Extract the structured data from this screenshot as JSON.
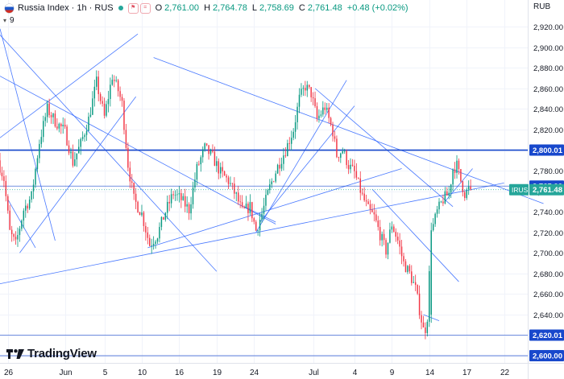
{
  "header": {
    "title": "Russia Index · 1h · RUS",
    "open_label": "O",
    "open": "2,761.00",
    "high_label": "H",
    "high": "2,764.78",
    "low_label": "L",
    "low": "2,758.69",
    "close_label": "C",
    "close": "2,761.48",
    "change": "+0.48 (+0.02%)",
    "currency": "RUB",
    "indicator_count": "9"
  },
  "brand": {
    "logo_text": "TradingView"
  },
  "colors": {
    "up": "#089981",
    "down": "#f23645",
    "trendline": "#2962ff",
    "hline": "#1848cc",
    "price_tag": "#26a69a"
  },
  "chart_data": {
    "type": "candlestick",
    "y_ticks": [
      2600,
      2620,
      2640,
      2660,
      2680,
      2700,
      2720,
      2740,
      2760,
      2780,
      2800,
      2820,
      2840,
      2860,
      2880,
      2900,
      2920
    ],
    "y_tick_labels": [
      "2,600.00",
      "2,620.00",
      "2,640.00",
      "2,660.00",
      "2,680.00",
      "2,700.00",
      "2,720.00",
      "2,740.00",
      "2,760.00",
      "2,780.00",
      "2,800.00",
      "2,820.00",
      "2,840.00",
      "2,860.00",
      "2,880.00",
      "2,900.00",
      "2,920.00"
    ],
    "ylim": [
      2593,
      2946
    ],
    "x_ticks": [
      {
        "i": 4,
        "label": "26"
      },
      {
        "i": 33,
        "label": "Jun"
      },
      {
        "i": 53,
        "label": "5"
      },
      {
        "i": 72,
        "label": "10"
      },
      {
        "i": 91,
        "label": "16"
      },
      {
        "i": 110,
        "label": "19"
      },
      {
        "i": 129,
        "label": "24"
      },
      {
        "i": 159,
        "label": "Jul"
      },
      {
        "i": 180,
        "label": "4"
      },
      {
        "i": 199,
        "label": "9"
      },
      {
        "i": 218,
        "label": "14"
      },
      {
        "i": 237,
        "label": "17"
      },
      {
        "i": 256,
        "label": "22"
      }
    ],
    "xlim": [
      0,
      268
    ],
    "price_tags": [
      {
        "value": 2800.01,
        "label": "2,800.01",
        "kind": "line"
      },
      {
        "value": 2765.0,
        "label": "2,765.00",
        "kind": "line"
      },
      {
        "value": 2761.48,
        "label": "2,761.48",
        "kind": "last"
      },
      {
        "value": 2620.01,
        "label": "2,620.01",
        "kind": "line"
      },
      {
        "value": 2600.0,
        "label": "2,600.00",
        "kind": "line"
      }
    ],
    "last_symbol": "IRUS",
    "hlines": [
      2800.01,
      2765.0,
      2620.01,
      2600.0
    ],
    "trendlines": [
      [
        0,
        2918,
        28,
        2712
      ],
      [
        0,
        2912,
        110,
        2682
      ],
      [
        0,
        2812,
        70,
        2913
      ],
      [
        4,
        2752,
        18,
        2705
      ],
      [
        10,
        2700,
        69,
        2852
      ],
      [
        0,
        2872,
        140,
        2728
      ],
      [
        78,
        2890,
        276,
        2748
      ],
      [
        75,
        2705,
        204,
        2782
      ],
      [
        0,
        2670,
        256,
        2768
      ],
      [
        130,
        2720,
        176,
        2868
      ],
      [
        132,
        2730,
        180,
        2843
      ],
      [
        124,
        2745,
        140,
        2730
      ],
      [
        160,
        2860,
        230,
        2745
      ],
      [
        189,
        2762,
        233,
        2672
      ],
      [
        215,
        2640,
        223,
        2634
      ],
      [
        226,
        2750,
        240,
        2782
      ]
    ],
    "waypoints": [
      [
        0,
        2790
      ],
      [
        3,
        2772
      ],
      [
        6,
        2720
      ],
      [
        9,
        2708
      ],
      [
        13,
        2742
      ],
      [
        17,
        2755
      ],
      [
        21,
        2808
      ],
      [
        25,
        2840
      ],
      [
        29,
        2828
      ],
      [
        34,
        2818
      ],
      [
        38,
        2788
      ],
      [
        42,
        2806
      ],
      [
        46,
        2830
      ],
      [
        50,
        2866
      ],
      [
        54,
        2832
      ],
      [
        58,
        2872
      ],
      [
        61,
        2858
      ],
      [
        63,
        2845
      ],
      [
        66,
        2786
      ],
      [
        69,
        2752
      ],
      [
        73,
        2738
      ],
      [
        77,
        2708
      ],
      [
        81,
        2718
      ],
      [
        85,
        2740
      ],
      [
        89,
        2758
      ],
      [
        93,
        2752
      ],
      [
        97,
        2742
      ],
      [
        101,
        2782
      ],
      [
        105,
        2802
      ],
      [
        109,
        2793
      ],
      [
        113,
        2778
      ],
      [
        117,
        2770
      ],
      [
        121,
        2755
      ],
      [
        124,
        2740
      ],
      [
        128,
        2745
      ],
      [
        131,
        2722
      ],
      [
        134,
        2738
      ],
      [
        138,
        2764
      ],
      [
        142,
        2784
      ],
      [
        146,
        2800
      ],
      [
        150,
        2820
      ],
      [
        153,
        2850
      ],
      [
        156,
        2862
      ],
      [
        159,
        2855
      ],
      [
        162,
        2830
      ],
      [
        166,
        2842
      ],
      [
        170,
        2818
      ],
      [
        172,
        2795
      ],
      [
        175,
        2800
      ],
      [
        178,
        2785
      ],
      [
        181,
        2778
      ],
      [
        185,
        2755
      ],
      [
        188,
        2742
      ],
      [
        191,
        2735
      ],
      [
        194,
        2718
      ],
      [
        197,
        2702
      ],
      [
        200,
        2728
      ],
      [
        203,
        2712
      ],
      [
        206,
        2690
      ],
      [
        209,
        2680
      ],
      [
        212,
        2665
      ],
      [
        214,
        2645
      ],
      [
        216,
        2625
      ],
      [
        218,
        2638
      ],
      [
        220,
        2720
      ],
      [
        223,
        2740
      ],
      [
        226,
        2752
      ],
      [
        229,
        2758
      ],
      [
        231,
        2782
      ],
      [
        233,
        2785
      ],
      [
        235,
        2770
      ],
      [
        237,
        2758
      ],
      [
        239,
        2762
      ]
    ],
    "waypoint_note": "",
    "series_count": 240
  }
}
